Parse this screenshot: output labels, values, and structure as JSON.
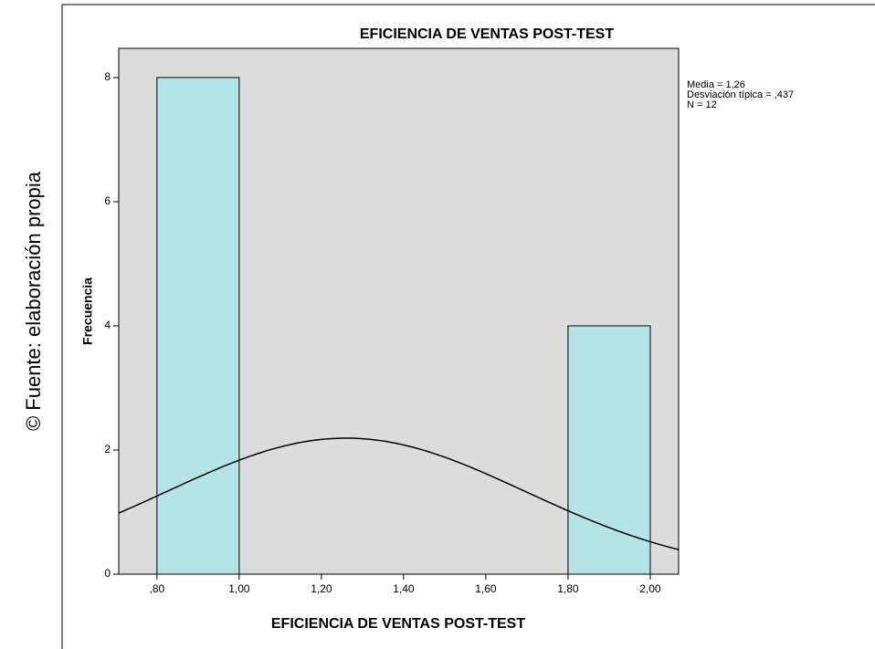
{
  "source": "© Fuente: elaboración propia",
  "chart_data": {
    "type": "histogram",
    "title": "EFICIENCIA DE VENTAS POST-TEST",
    "x_label": "EFICIENCIA DE VENTAS POST-TEST",
    "y_label": "Frecuencia",
    "bins": [
      0.8,
      1.0,
      1.2,
      1.4,
      1.6,
      1.8,
      2.0
    ],
    "values": [
      8,
      0,
      0,
      0,
      0,
      4
    ],
    "color": "#b4e4e5",
    "background": "#dcdcdc",
    "xlim": [
      0.707,
      2.069
    ],
    "xticks": [
      {
        "value": 0.8,
        "label": ",80"
      },
      {
        "value": 1.0,
        "label": "1,00"
      },
      {
        "value": 1.2,
        "label": "1,20"
      },
      {
        "value": 1.4,
        "label": "1,40"
      },
      {
        "value": 1.6,
        "label": "1,60"
      },
      {
        "value": 1.8,
        "label": "1,80"
      },
      {
        "value": 2.0,
        "label": "2,00"
      }
    ],
    "ylim": [
      0,
      8.47
    ],
    "yticks": [
      0,
      2,
      4,
      6,
      8
    ],
    "stats": [
      {
        "value": 1.26,
        "label": "Media = 1,26"
      },
      {
        "value": 0.437,
        "label": "Desviación típica = ,437"
      },
      {
        "value": 12,
        "label": "N = 12"
      }
    ]
  }
}
